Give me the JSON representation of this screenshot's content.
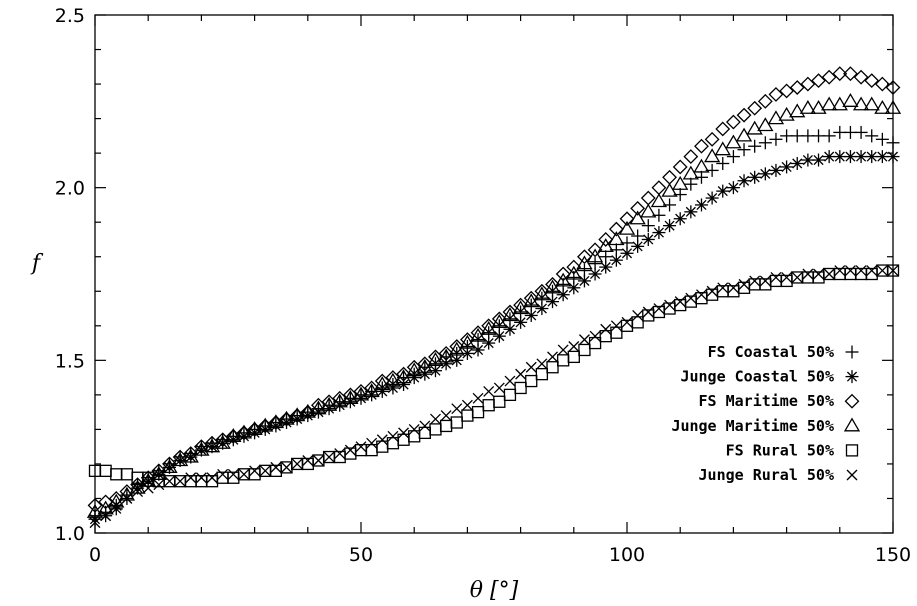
{
  "chart_data": {
    "type": "scatter",
    "xlabel": "θ [°]",
    "ylabel": "f",
    "xlim": [
      0,
      150
    ],
    "ylim": [
      1.0,
      2.5
    ],
    "x_ticks": [
      "0",
      "50",
      "100",
      "150"
    ],
    "y_ticks": [
      "1.0",
      "1.5",
      "2.0",
      "2.5"
    ],
    "legend_position": "bottom-right",
    "x": [
      0,
      2,
      4,
      6,
      8,
      10,
      12,
      14,
      16,
      18,
      20,
      22,
      24,
      26,
      28,
      30,
      32,
      34,
      36,
      38,
      40,
      42,
      44,
      46,
      48,
      50,
      52,
      54,
      56,
      58,
      60,
      62,
      64,
      66,
      68,
      70,
      72,
      74,
      76,
      78,
      80,
      82,
      84,
      86,
      88,
      90,
      92,
      94,
      96,
      98,
      100,
      102,
      104,
      106,
      108,
      110,
      112,
      114,
      116,
      118,
      120,
      122,
      124,
      126,
      128,
      130,
      132,
      134,
      136,
      138,
      140,
      142,
      144,
      146,
      148,
      150
    ],
    "series": [
      {
        "name": "FS Coastal 50%",
        "marker": "plus",
        "values": [
          1.05,
          1.06,
          1.08,
          1.11,
          1.14,
          1.16,
          1.18,
          1.2,
          1.22,
          1.23,
          1.25,
          1.26,
          1.27,
          1.28,
          1.29,
          1.3,
          1.31,
          1.32,
          1.33,
          1.34,
          1.35,
          1.36,
          1.37,
          1.38,
          1.39,
          1.4,
          1.41,
          1.42,
          1.43,
          1.45,
          1.46,
          1.48,
          1.49,
          1.51,
          1.52,
          1.54,
          1.56,
          1.58,
          1.6,
          1.62,
          1.64,
          1.66,
          1.68,
          1.7,
          1.72,
          1.74,
          1.76,
          1.78,
          1.8,
          1.82,
          1.84,
          1.86,
          1.89,
          1.92,
          1.95,
          1.98,
          2.01,
          2.03,
          2.05,
          2.07,
          2.09,
          2.11,
          2.12,
          2.13,
          2.14,
          2.15,
          2.15,
          2.15,
          2.15,
          2.15,
          2.16,
          2.16,
          2.16,
          2.15,
          2.14,
          2.13
        ]
      },
      {
        "name": "Junge Coastal 50%",
        "marker": "asterisk",
        "values": [
          1.04,
          1.05,
          1.07,
          1.1,
          1.13,
          1.15,
          1.17,
          1.19,
          1.21,
          1.22,
          1.24,
          1.25,
          1.26,
          1.27,
          1.28,
          1.29,
          1.3,
          1.31,
          1.32,
          1.33,
          1.34,
          1.35,
          1.36,
          1.37,
          1.38,
          1.39,
          1.4,
          1.41,
          1.42,
          1.43,
          1.45,
          1.46,
          1.47,
          1.49,
          1.5,
          1.52,
          1.53,
          1.55,
          1.57,
          1.59,
          1.61,
          1.63,
          1.65,
          1.67,
          1.69,
          1.71,
          1.73,
          1.75,
          1.77,
          1.79,
          1.81,
          1.83,
          1.85,
          1.87,
          1.89,
          1.91,
          1.93,
          1.95,
          1.97,
          1.99,
          2.0,
          2.02,
          2.03,
          2.04,
          2.05,
          2.06,
          2.07,
          2.08,
          2.08,
          2.09,
          2.09,
          2.09,
          2.09,
          2.09,
          2.09,
          2.09
        ]
      },
      {
        "name": "FS Maritime 50%",
        "marker": "diamond",
        "values": [
          1.08,
          1.09,
          1.1,
          1.12,
          1.14,
          1.16,
          1.18,
          1.2,
          1.22,
          1.23,
          1.25,
          1.26,
          1.27,
          1.28,
          1.29,
          1.3,
          1.31,
          1.32,
          1.33,
          1.34,
          1.35,
          1.37,
          1.38,
          1.39,
          1.4,
          1.41,
          1.42,
          1.44,
          1.45,
          1.46,
          1.48,
          1.49,
          1.51,
          1.52,
          1.54,
          1.56,
          1.58,
          1.6,
          1.62,
          1.64,
          1.66,
          1.68,
          1.7,
          1.72,
          1.75,
          1.77,
          1.8,
          1.82,
          1.85,
          1.88,
          1.91,
          1.94,
          1.97,
          2.0,
          2.03,
          2.06,
          2.09,
          2.12,
          2.14,
          2.17,
          2.19,
          2.21,
          2.23,
          2.25,
          2.27,
          2.28,
          2.29,
          2.3,
          2.31,
          2.32,
          2.33,
          2.33,
          2.32,
          2.31,
          2.3,
          2.29
        ]
      },
      {
        "name": "Junge Maritime 50%",
        "marker": "triangle",
        "values": [
          1.06,
          1.07,
          1.09,
          1.11,
          1.13,
          1.15,
          1.17,
          1.19,
          1.21,
          1.22,
          1.24,
          1.25,
          1.26,
          1.28,
          1.29,
          1.3,
          1.31,
          1.32,
          1.33,
          1.34,
          1.35,
          1.36,
          1.37,
          1.38,
          1.39,
          1.4,
          1.41,
          1.43,
          1.44,
          1.45,
          1.47,
          1.48,
          1.5,
          1.51,
          1.53,
          1.55,
          1.57,
          1.59,
          1.61,
          1.63,
          1.65,
          1.67,
          1.69,
          1.71,
          1.73,
          1.75,
          1.78,
          1.8,
          1.83,
          1.85,
          1.88,
          1.91,
          1.93,
          1.96,
          1.99,
          2.01,
          2.04,
          2.06,
          2.09,
          2.11,
          2.13,
          2.15,
          2.17,
          2.18,
          2.2,
          2.21,
          2.22,
          2.23,
          2.23,
          2.24,
          2.24,
          2.25,
          2.24,
          2.24,
          2.23,
          2.23
        ]
      },
      {
        "name": "FS Rural 50%",
        "marker": "square",
        "values": [
          1.18,
          1.18,
          1.17,
          1.17,
          1.16,
          1.16,
          1.15,
          1.15,
          1.15,
          1.15,
          1.15,
          1.15,
          1.16,
          1.16,
          1.17,
          1.17,
          1.18,
          1.18,
          1.19,
          1.2,
          1.2,
          1.21,
          1.22,
          1.22,
          1.23,
          1.24,
          1.24,
          1.25,
          1.26,
          1.27,
          1.28,
          1.29,
          1.3,
          1.31,
          1.32,
          1.34,
          1.35,
          1.37,
          1.38,
          1.4,
          1.42,
          1.44,
          1.46,
          1.48,
          1.5,
          1.51,
          1.53,
          1.55,
          1.57,
          1.58,
          1.6,
          1.61,
          1.63,
          1.64,
          1.65,
          1.66,
          1.67,
          1.68,
          1.69,
          1.7,
          1.7,
          1.71,
          1.72,
          1.72,
          1.73,
          1.73,
          1.74,
          1.74,
          1.74,
          1.75,
          1.75,
          1.75,
          1.75,
          1.75,
          1.76,
          1.76
        ]
      },
      {
        "name": "Junge Rural 50%",
        "marker": "cross",
        "values": [
          1.03,
          1.05,
          1.08,
          1.1,
          1.12,
          1.13,
          1.14,
          1.15,
          1.15,
          1.16,
          1.16,
          1.16,
          1.17,
          1.17,
          1.17,
          1.18,
          1.18,
          1.19,
          1.19,
          1.2,
          1.21,
          1.21,
          1.22,
          1.23,
          1.24,
          1.25,
          1.26,
          1.27,
          1.28,
          1.29,
          1.3,
          1.31,
          1.33,
          1.34,
          1.36,
          1.37,
          1.39,
          1.41,
          1.42,
          1.44,
          1.46,
          1.48,
          1.49,
          1.51,
          1.53,
          1.54,
          1.56,
          1.57,
          1.59,
          1.6,
          1.61,
          1.63,
          1.64,
          1.65,
          1.66,
          1.67,
          1.68,
          1.69,
          1.7,
          1.71,
          1.71,
          1.72,
          1.73,
          1.73,
          1.74,
          1.74,
          1.74,
          1.75,
          1.75,
          1.75,
          1.76,
          1.76,
          1.76,
          1.76,
          1.76,
          1.76
        ]
      }
    ]
  }
}
